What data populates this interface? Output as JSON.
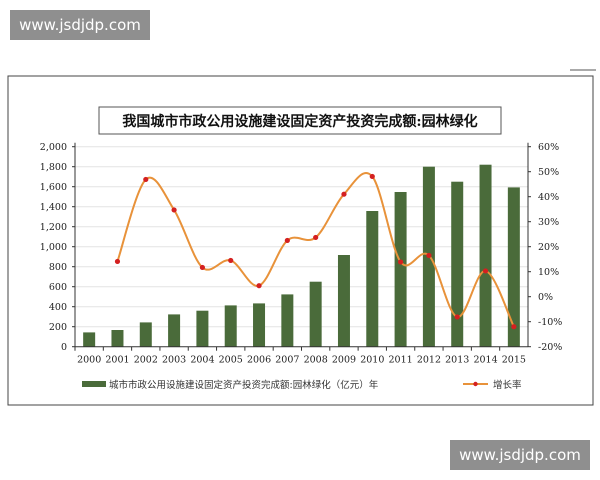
{
  "watermark_top": "www.jsdjdp.com",
  "watermark_bottom": "www.jsdjdp.com",
  "chart_data": {
    "type": "bar+line",
    "title": "我国城市市政公用设施建设固定资产投资完成额:园林绿化",
    "categories": [
      "2000",
      "2001",
      "2002",
      "2003",
      "2004",
      "2005",
      "2006",
      "2007",
      "2008",
      "2009",
      "2010",
      "2011",
      "2012",
      "2013",
      "2014",
      "2015"
    ],
    "series": [
      {
        "name": "城市市政公用设施建设固定资产投资完成额:园林绿化（亿元）年",
        "type": "bar",
        "axis": "left",
        "color": "#4a6b3a",
        "values": [
          143,
          167,
          243,
          323,
          360,
          413,
          433,
          523,
          650,
          917,
          1357,
          1547,
          1800,
          1650,
          1820,
          1593
        ]
      },
      {
        "name": "增长率",
        "type": "line",
        "axis": "right",
        "color": "#e8923a",
        "marker_color": "#d42020",
        "values": [
          null,
          14.1,
          46.9,
          34.7,
          11.7,
          14.5,
          4.4,
          22.5,
          23.7,
          41.0,
          48.1,
          13.9,
          16.5,
          -8.1,
          10.3,
          -12.0
        ]
      }
    ],
    "left_axis": {
      "ylim": [
        0,
        2000
      ],
      "ticks": [
        "0",
        "200",
        "400",
        "600",
        "800",
        "1,000",
        "1,200",
        "1,400",
        "1,600",
        "1,800",
        "2,000"
      ]
    },
    "right_axis": {
      "ylim": [
        -20,
        60
      ],
      "unit": "%",
      "ticks": [
        "-20%",
        "-10%",
        "0%",
        "10%",
        "20%",
        "30%",
        "40%",
        "50%",
        "60%"
      ]
    },
    "grid": true,
    "legend_position": "bottom"
  }
}
